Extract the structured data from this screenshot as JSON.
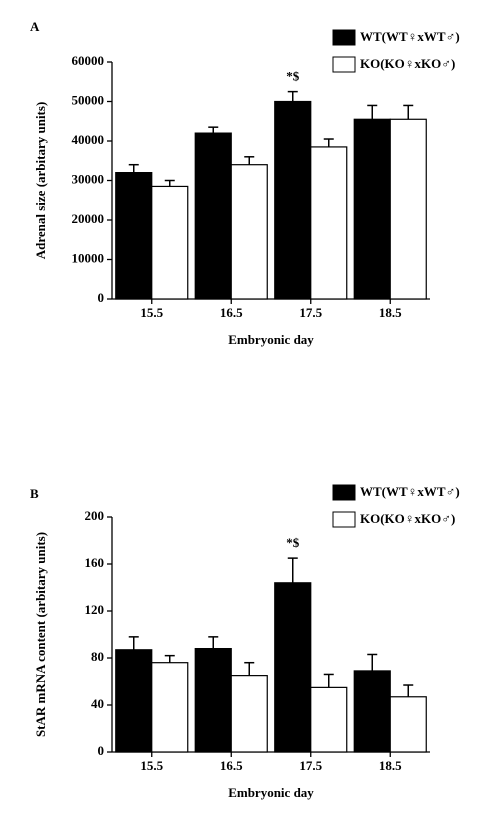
{
  "chart_data": [
    {
      "type": "bar",
      "panel": "A",
      "y_label": "Adrenal size (arbitary units)",
      "x_label": "Embryonic day",
      "categories": [
        "15.5",
        "16.5",
        "17.5",
        "18.5"
      ],
      "series": [
        {
          "name": "WT(WT♀xWT♂)",
          "color": "#000000",
          "values": [
            32000,
            42000,
            50000,
            45500
          ],
          "errors": [
            2000,
            1500,
            2500,
            3500
          ]
        },
        {
          "name": "KO(KO♀xKO♂)",
          "color": "#ffffff",
          "values": [
            28500,
            34000,
            38500,
            45500
          ],
          "errors": [
            1500,
            2000,
            2000,
            3500
          ]
        }
      ],
      "ylim": [
        0,
        60000
      ],
      "yticks": [
        0,
        10000,
        20000,
        30000,
        40000,
        50000,
        60000
      ],
      "annotations": [
        {
          "text": "*$",
          "category": "17.5",
          "series": "WT(WT♀xWT♂)"
        }
      ]
    },
    {
      "type": "bar",
      "panel": "B",
      "y_label": "StAR mRNA content (arbitary units)",
      "x_label": "Embryonic day",
      "categories": [
        "15.5",
        "16.5",
        "17.5",
        "18.5"
      ],
      "series": [
        {
          "name": "WT(WT♀xWT♂)",
          "color": "#000000",
          "values": [
            87,
            88,
            144,
            69
          ],
          "errors": [
            11,
            10,
            21,
            14
          ]
        },
        {
          "name": "KO(KO♀xKO♂)",
          "color": "#ffffff",
          "values": [
            76,
            65,
            55,
            47
          ],
          "errors": [
            6,
            11,
            11,
            10
          ]
        }
      ],
      "ylim": [
        0,
        200
      ],
      "yticks": [
        0,
        40,
        80,
        120,
        160,
        200
      ],
      "annotations": [
        {
          "text": "*$",
          "category": "17.5",
          "series": "WT(WT♀xWT♂)"
        }
      ]
    }
  ]
}
